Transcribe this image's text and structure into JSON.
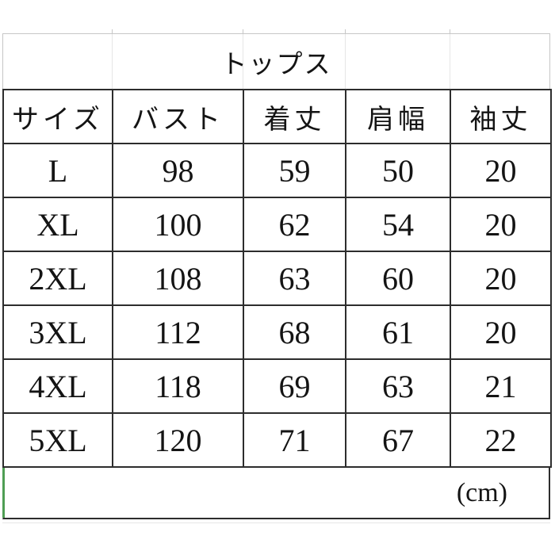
{
  "table": {
    "title": "トップス",
    "columns": [
      "サイズ",
      "バスト",
      "着丈",
      "肩幅",
      "袖丈"
    ],
    "rows": [
      {
        "size": "L",
        "values": [
          "98",
          "59",
          "50",
          "20"
        ]
      },
      {
        "size": "XL",
        "values": [
          "100",
          "62",
          "54",
          "20"
        ]
      },
      {
        "size": "2XL",
        "values": [
          "108",
          "63",
          "60",
          "20"
        ]
      },
      {
        "size": "3XL",
        "values": [
          "112",
          "68",
          "61",
          "20"
        ]
      },
      {
        "size": "4XL",
        "values": [
          "118",
          "69",
          "63",
          "21"
        ]
      },
      {
        "size": "5XL",
        "values": [
          "120",
          "71",
          "67",
          "22"
        ]
      }
    ],
    "unit_label": "(cm)"
  },
  "colors": {
    "background": "#ffffff",
    "text": "#141414",
    "border_dark": "#2d2d2d",
    "gridline_light": "#c6c6c6",
    "gridline_faint": "#e6e6e6",
    "selection_green": "#4f9e54"
  },
  "chart_data": {
    "type": "table",
    "title": "トップス",
    "unit": "cm",
    "columns": [
      "サイズ",
      "バスト",
      "着丈",
      "肩幅",
      "袖丈"
    ],
    "rows": [
      [
        "L",
        98,
        59,
        50,
        20
      ],
      [
        "XL",
        100,
        62,
        54,
        20
      ],
      [
        "2XL",
        108,
        63,
        60,
        20
      ],
      [
        "3XL",
        112,
        68,
        61,
        20
      ],
      [
        "4XL",
        118,
        69,
        63,
        21
      ],
      [
        "5XL",
        120,
        71,
        67,
        22
      ]
    ]
  }
}
